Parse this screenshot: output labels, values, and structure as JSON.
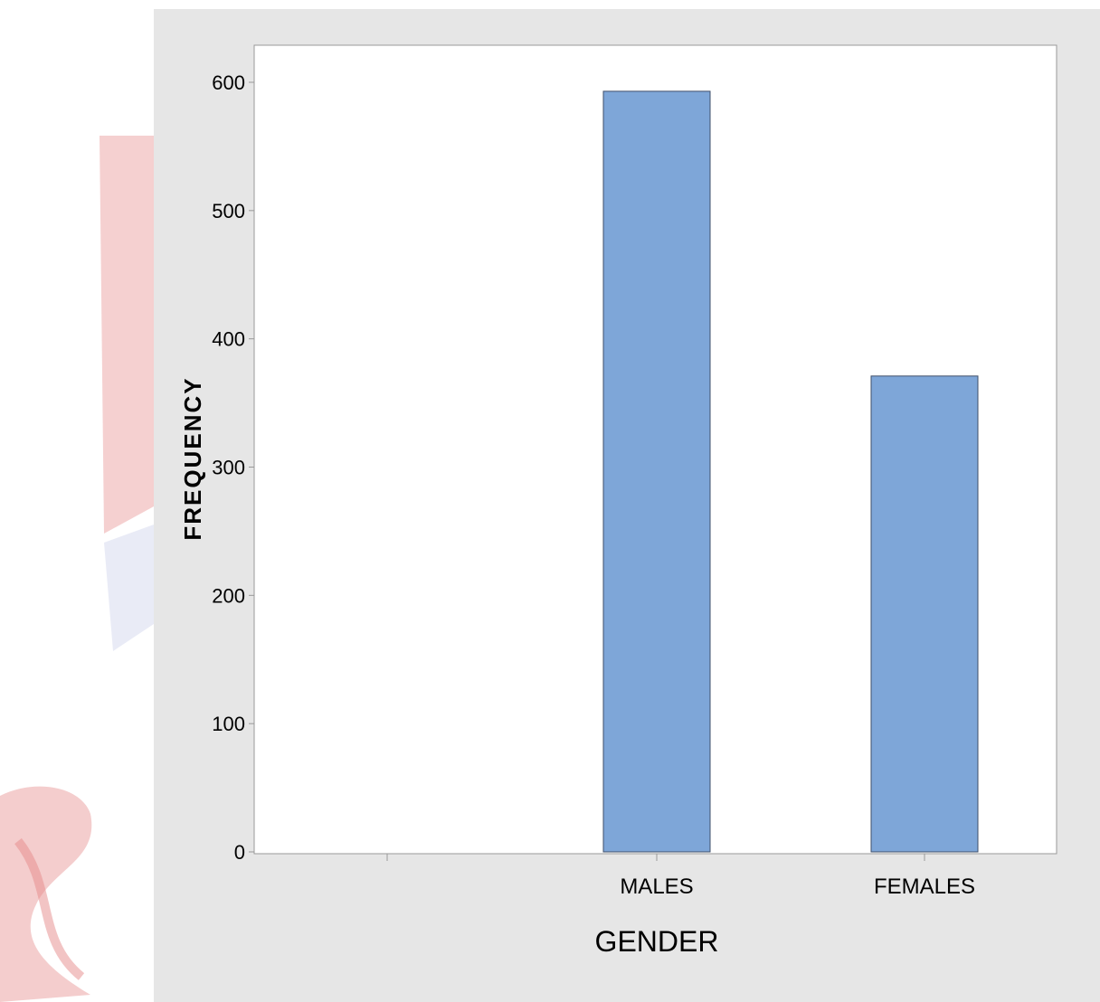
{
  "chart_data": {
    "type": "bar",
    "title": "",
    "xlabel": "GENDER",
    "ylabel": "FREQUENCY",
    "categories": [
      "",
      "MALES",
      "FEMALES"
    ],
    "values": [
      0,
      593,
      371
    ],
    "ylim": [
      0,
      630
    ],
    "yticks": [
      0,
      100,
      200,
      300,
      400,
      500,
      600
    ],
    "grid": false,
    "legend": "none",
    "colors": {
      "bar_fill": "#7ea6d8",
      "bar_stroke": "#3f4f6a",
      "panel_background": "#e6e6e6",
      "plot_background": "#ffffff",
      "axis": "#999999"
    }
  },
  "watermark": {
    "description_icon": "university-crest-watermark",
    "colors": [
      "#e76a6a",
      "#9aa8d8"
    ]
  }
}
